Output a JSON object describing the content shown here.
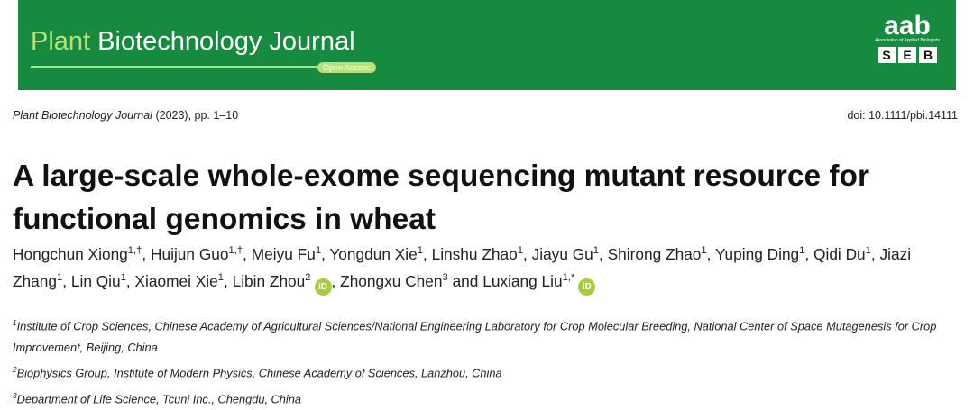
{
  "banner": {
    "journal_first": "Plant",
    "journal_rest": "Biotechnology Journal",
    "badge": "Open Access",
    "logo": "aab",
    "logo_sub": "Association of Applied Biologists",
    "seb": [
      "S",
      "E",
      "B"
    ]
  },
  "citation": {
    "journal": "Plant Biotechnology Journal",
    "year_pages": "(2023), pp. 1–10",
    "doi": "doi: 10.1111/pbi.14111"
  },
  "title": "A large-scale whole-exome sequencing mutant resource for functional genomics in wheat",
  "orcid_label": "iD",
  "authors": [
    {
      "name": "Hongchun Xiong",
      "sup": "1,†"
    },
    {
      "sep": ", ",
      "name": "Huijun Guo",
      "sup": "1,†"
    },
    {
      "sep": ", ",
      "name": "Meiyu Fu",
      "sup": "1"
    },
    {
      "sep": ", ",
      "name": "Yongdun Xie",
      "sup": "1"
    },
    {
      "sep": ", ",
      "name": "Linshu Zhao",
      "sup": "1"
    },
    {
      "sep": ", ",
      "name": "Jiayu Gu",
      "sup": "1"
    },
    {
      "sep": ", ",
      "name": "Shirong Zhao",
      "sup": "1"
    },
    {
      "sep": ", ",
      "name": "Yuping Ding",
      "sup": "1"
    },
    {
      "sep": ", ",
      "name": "Qidi Du",
      "sup": "1"
    },
    {
      "sep": ", ",
      "name": "Jiazi Zhang",
      "sup": "1"
    },
    {
      "sep": ", ",
      "name": "Lin Qiu",
      "sup": "1"
    },
    {
      "sep": ", ",
      "name": "Xiaomei Xie",
      "sup": "1"
    },
    {
      "sep": ", ",
      "name": "Libin Zhou",
      "sup": "2",
      "orcid": true
    },
    {
      "sep": ", ",
      "name": "Zhongxu Chen",
      "sup": "3"
    },
    {
      "sep": " and ",
      "name": "Luxiang Liu",
      "sup": "1,*",
      "orcid": true
    }
  ],
  "affiliations": [
    {
      "sup": "1",
      "text": "Institute of Crop Sciences, Chinese Academy of Agricultural Sciences/National Engineering Laboratory for Crop Molecular Breeding, National Center of Space Mutagenesis for Crop Improvement, Beijing, China"
    },
    {
      "sup": "2",
      "text": "Biophysics Group, Institute of Modern Physics, Chinese Academy of Sciences, Lanzhou, China"
    },
    {
      "sup": "3",
      "text": "Department of Life Science, Tcuni Inc., Chengdu, China"
    }
  ]
}
